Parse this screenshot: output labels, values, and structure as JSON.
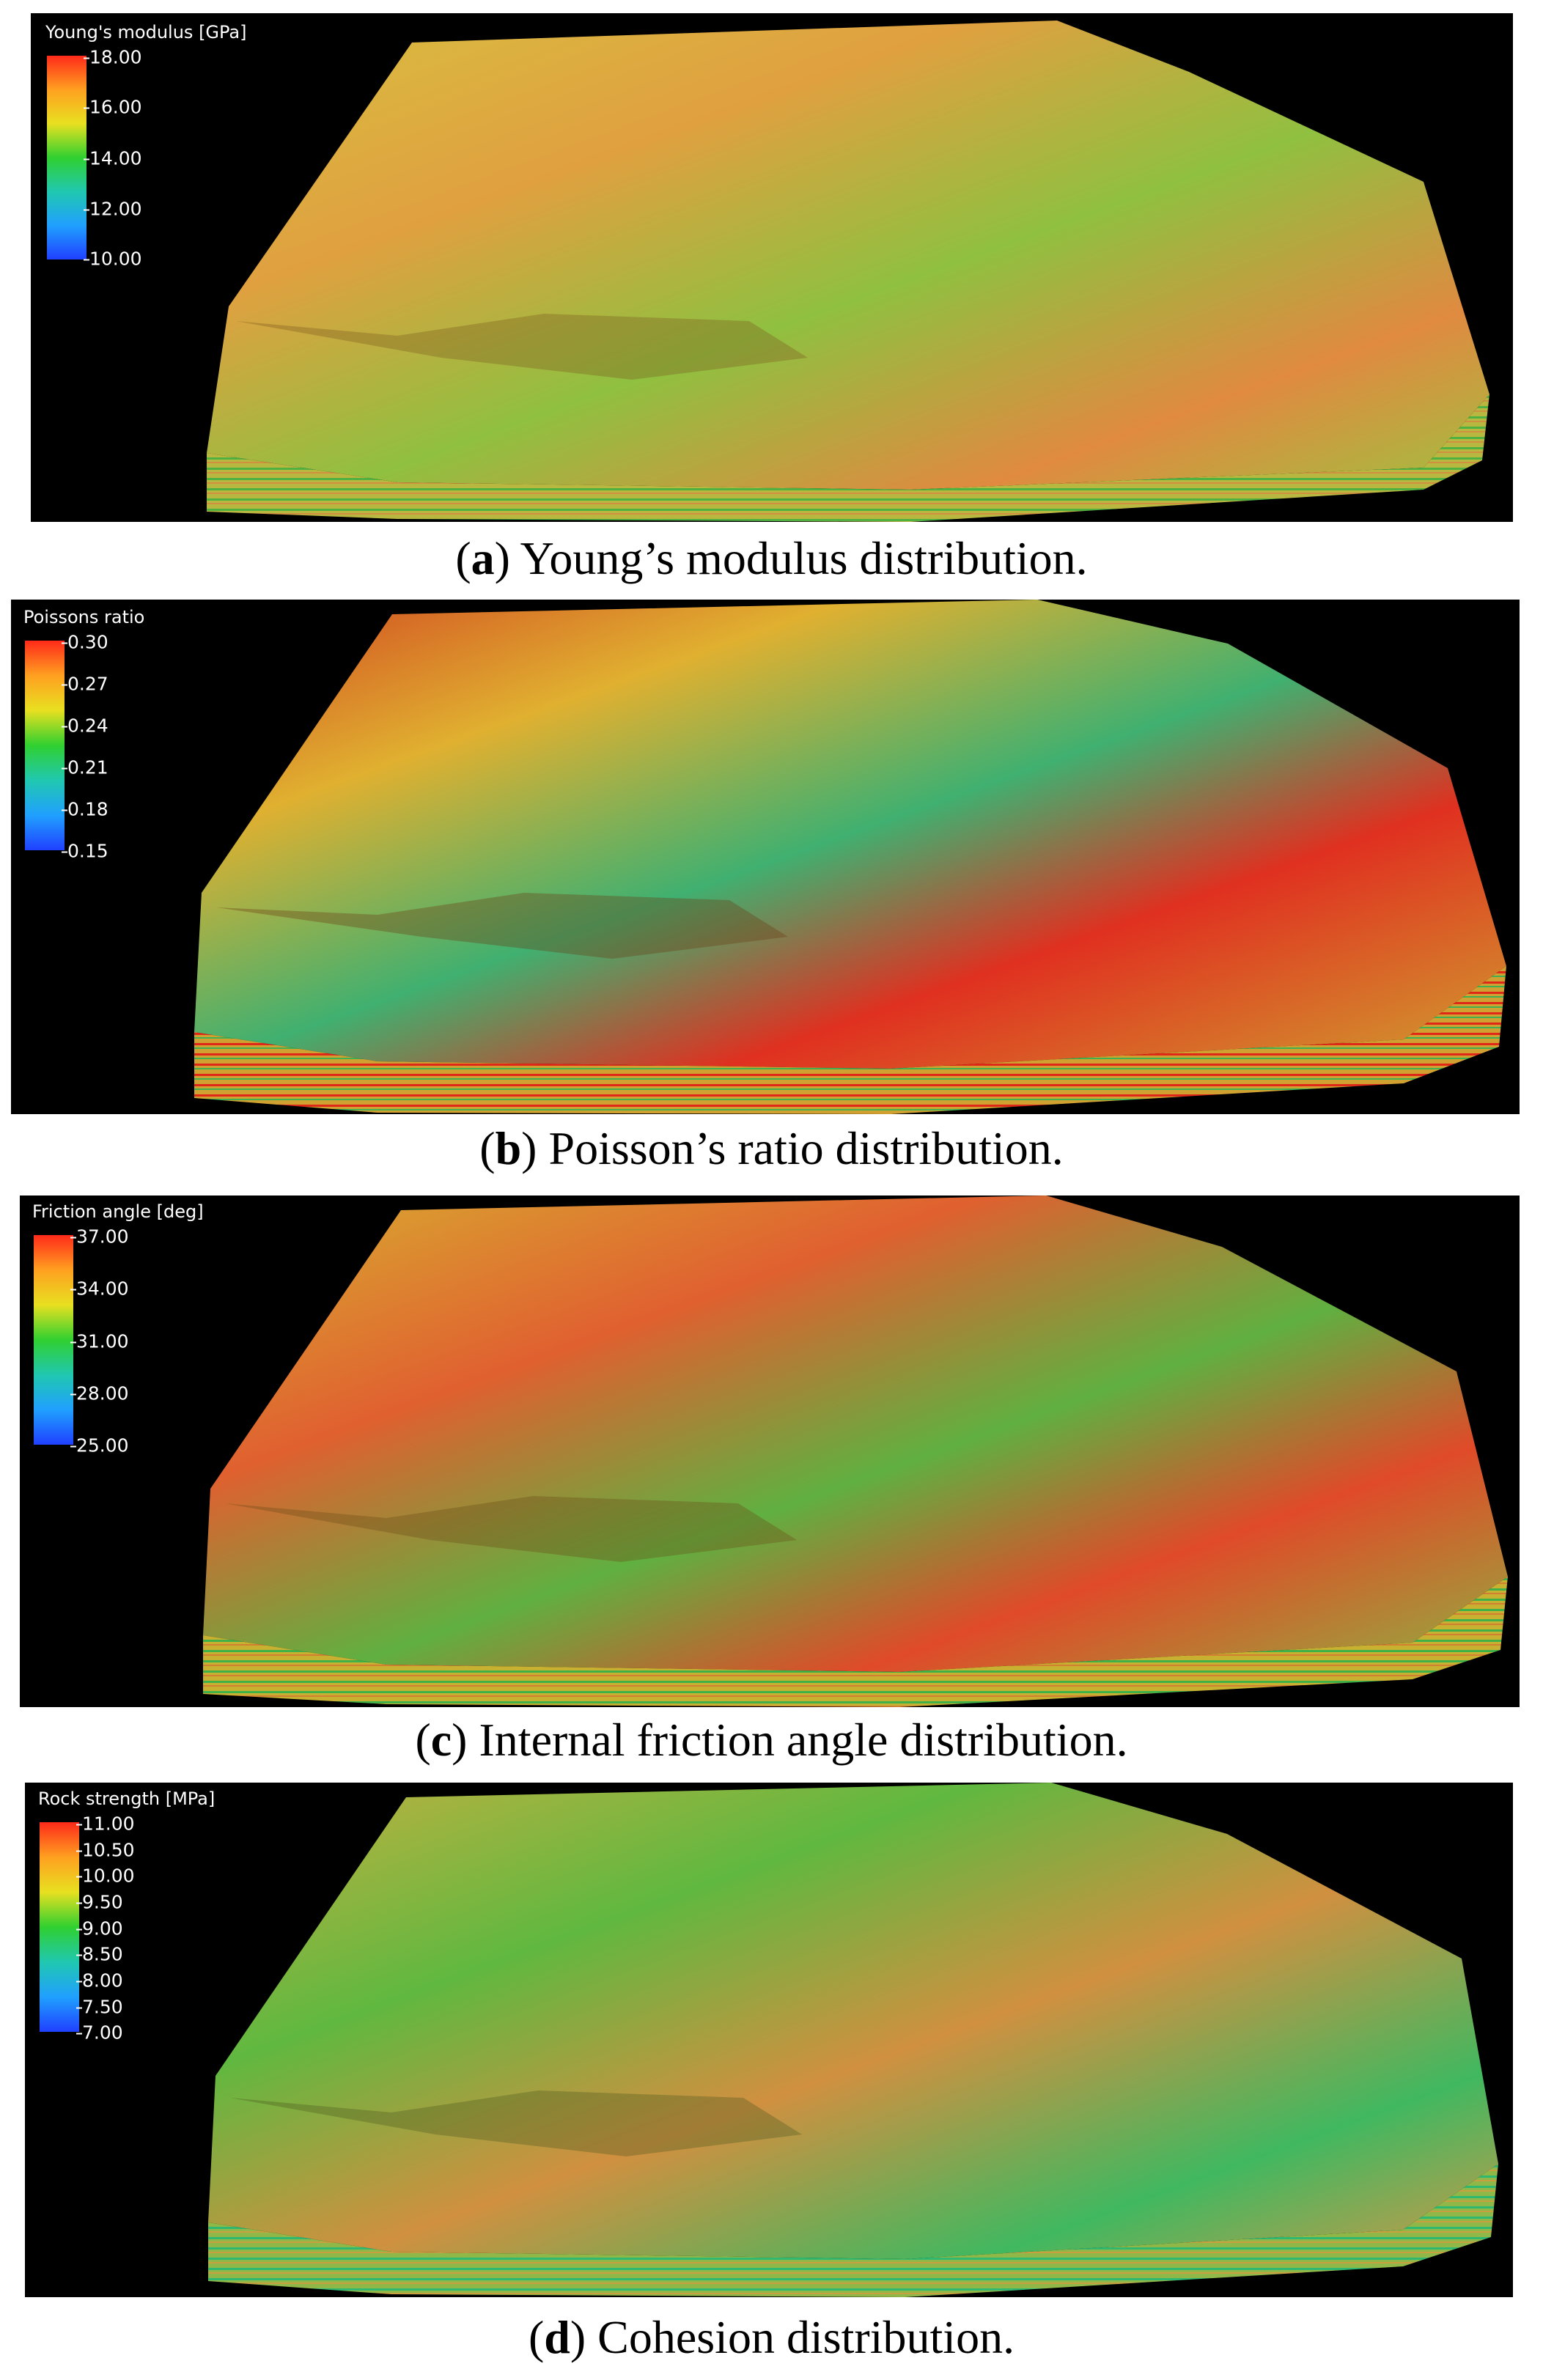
{
  "panels": [
    {
      "legend_title": "Young's modulus [GPa]",
      "ticks": [
        "18.00",
        "16.00",
        "14.00",
        "12.00",
        "10.00"
      ],
      "caption_letter": "a",
      "caption_text": " Young’s modulus distribution."
    },
    {
      "legend_title": "Poissons ratio",
      "ticks": [
        "0.30",
        "0.27",
        "0.24",
        "0.21",
        "0.18",
        "0.15"
      ],
      "caption_letter": "b",
      "caption_text": " Poisson’s ratio distribution."
    },
    {
      "legend_title": "Friction angle [deg]",
      "ticks": [
        "37.00",
        "34.00",
        "31.00",
        "28.00",
        "25.00"
      ],
      "caption_letter": "c",
      "caption_text": " Internal friction angle distribution."
    },
    {
      "legend_title": "Rock strength [MPa]",
      "ticks": [
        "11.00",
        "10.50",
        "10.00",
        "9.50",
        "9.00",
        "8.50",
        "8.00",
        "7.50",
        "7.00"
      ],
      "caption_letter": "d",
      "caption_text": " Cohesion distribution."
    }
  ],
  "colormap": [
    "#ff2a1a",
    "#ffa020",
    "#e8e020",
    "#30d030",
    "#20c8b0",
    "#20a0ff",
    "#2040ff"
  ]
}
